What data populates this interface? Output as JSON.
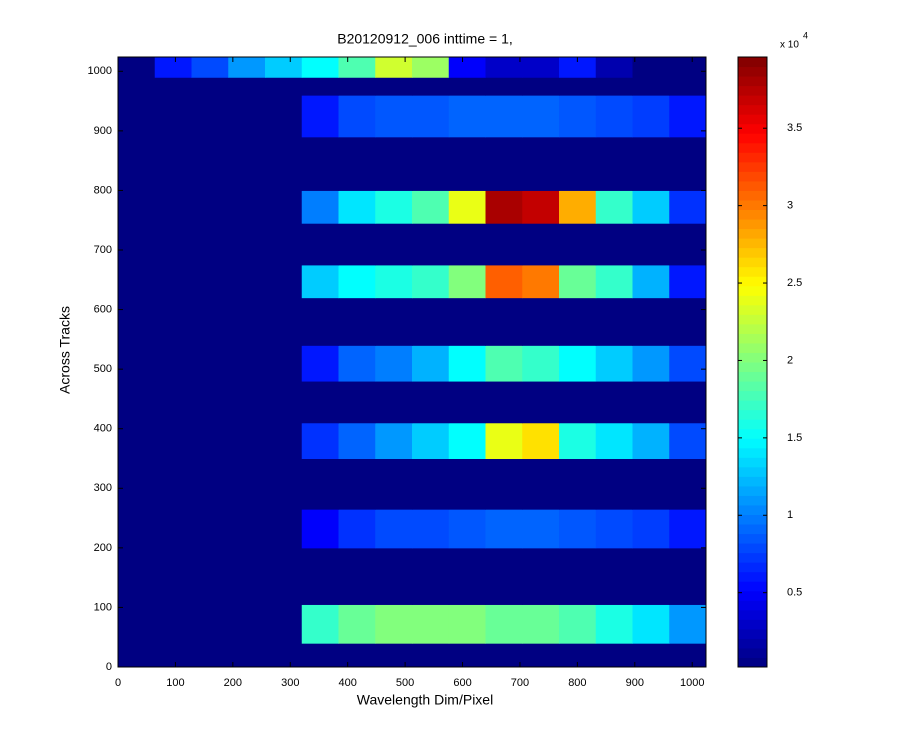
{
  "chart_data": {
    "type": "heatmap",
    "title": "B20120912_006 inttime = 1,",
    "x_label": "Wavelength Dim/Pixel",
    "y_label": "Across Tracks",
    "colormap": "jet",
    "xlim": [
      0,
      1024
    ],
    "ylim": [
      0,
      1024
    ],
    "xticks": [
      0,
      100,
      200,
      300,
      400,
      500,
      600,
      700,
      800,
      900,
      1000
    ],
    "yticks": [
      0,
      100,
      200,
      300,
      400,
      500,
      600,
      700,
      800,
      900,
      1000
    ],
    "xbins": [
      0,
      64,
      128,
      192,
      256,
      320,
      384,
      448,
      512,
      576,
      640,
      704,
      768,
      832,
      896,
      960,
      1024
    ],
    "ybins": [
      0,
      40,
      105,
      200,
      265,
      350,
      410,
      480,
      540,
      620,
      675,
      745,
      800,
      890,
      960,
      990,
      1024
    ],
    "z": [
      [
        300,
        300,
        300,
        300,
        300,
        300,
        300,
        300,
        300,
        300,
        300,
        300,
        300,
        300,
        300,
        300
      ],
      [
        300,
        300,
        300,
        300,
        300,
        17000,
        19000,
        20000,
        20000,
        20000,
        19000,
        19000,
        18000,
        16000,
        14000,
        11000
      ],
      [
        300,
        300,
        300,
        300,
        300,
        300,
        300,
        300,
        300,
        300,
        300,
        300,
        300,
        300,
        300,
        300
      ],
      [
        300,
        300,
        300,
        300,
        300,
        5000,
        7000,
        8000,
        8000,
        8500,
        9000,
        9000,
        8500,
        8000,
        7500,
        6000
      ],
      [
        300,
        300,
        300,
        300,
        300,
        300,
        300,
        300,
        300,
        300,
        300,
        300,
        300,
        300,
        300,
        300
      ],
      [
        300,
        300,
        300,
        300,
        300,
        7000,
        9000,
        11000,
        13000,
        15000,
        24000,
        26000,
        16000,
        14000,
        12000,
        8000
      ],
      [
        300,
        300,
        300,
        300,
        300,
        300,
        300,
        300,
        300,
        300,
        300,
        300,
        300,
        300,
        300,
        300
      ],
      [
        300,
        300,
        300,
        300,
        300,
        6000,
        9000,
        10000,
        12000,
        15000,
        18000,
        17000,
        15000,
        13000,
        11000,
        8000
      ],
      [
        300,
        300,
        300,
        300,
        300,
        300,
        300,
        300,
        300,
        300,
        300,
        300,
        300,
        300,
        300,
        300
      ],
      [
        300,
        300,
        300,
        300,
        300,
        13000,
        15000,
        16000,
        17000,
        20000,
        31000,
        30000,
        19000,
        17000,
        12000,
        6000
      ],
      [
        300,
        300,
        300,
        300,
        300,
        300,
        300,
        300,
        300,
        300,
        300,
        300,
        300,
        300,
        300,
        300
      ],
      [
        300,
        300,
        300,
        300,
        300,
        10000,
        14000,
        16000,
        18000,
        24000,
        38000,
        37000,
        28000,
        17000,
        13000,
        7000
      ],
      [
        300,
        300,
        300,
        300,
        300,
        300,
        300,
        300,
        300,
        300,
        300,
        300,
        300,
        300,
        300,
        300
      ],
      [
        300,
        300,
        300,
        300,
        300,
        6000,
        8000,
        8500,
        8500,
        9000,
        9000,
        9000,
        8500,
        8000,
        7500,
        6000
      ],
      [
        300,
        300,
        300,
        300,
        300,
        300,
        300,
        300,
        300,
        300,
        300,
        300,
        300,
        300,
        300,
        300
      ],
      [
        300,
        6000,
        8000,
        11000,
        13000,
        15000,
        18000,
        23000,
        21000,
        5000,
        3000,
        3000,
        6000,
        2000,
        300,
        300
      ]
    ],
    "clim": [
      200,
      39600
    ],
    "colorbar_multiplier": "x 10",
    "colorbar_exponent": "4",
    "cticks": [
      {
        "value": 5000,
        "label": "0.5"
      },
      {
        "value": 10000,
        "label": "1"
      },
      {
        "value": 15000,
        "label": "1.5"
      },
      {
        "value": 20000,
        "label": "2"
      },
      {
        "value": 25000,
        "label": "2.5"
      },
      {
        "value": 30000,
        "label": "3"
      },
      {
        "value": 35000,
        "label": "3.5"
      }
    ]
  }
}
